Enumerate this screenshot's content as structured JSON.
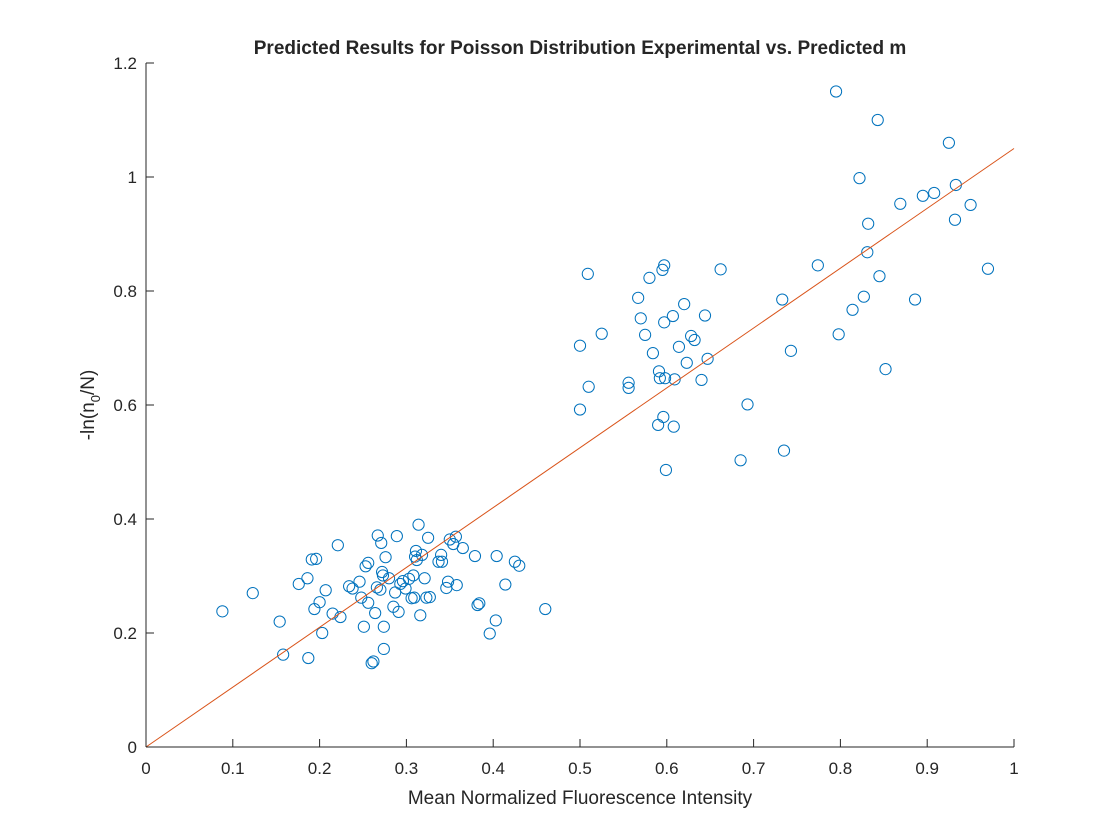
{
  "chart_data": {
    "type": "scatter",
    "title": "Predicted Results for Poisson Distribution Experimental vs. Predicted m",
    "xlabel": "Mean Normalized Fluorescence Intensity",
    "ylabel_main": "-ln(n",
    "ylabel_sub": "0",
    "ylabel_tail": "/N)",
    "xlim": [
      0,
      1
    ],
    "ylim": [
      0,
      1.2
    ],
    "xticks": [
      "0",
      "0.1",
      "0.2",
      "0.3",
      "0.4",
      "0.5",
      "0.6",
      "0.7",
      "0.8",
      "0.9",
      "1"
    ],
    "yticks": [
      "0",
      "0.2",
      "0.4",
      "0.6",
      "0.8",
      "1",
      "1.2"
    ],
    "xtick_values": [
      0,
      0.1,
      0.2,
      0.3,
      0.4,
      0.5,
      0.6,
      0.7,
      0.8,
      0.9,
      1
    ],
    "ytick_values": [
      0,
      0.2,
      0.4,
      0.6,
      0.8,
      1,
      1.2
    ],
    "grid": false,
    "series": [
      {
        "kind": "markers",
        "marker": "circle-open",
        "color": "#0072BD",
        "x": [
          0.088,
          0.123,
          0.154,
          0.158,
          0.176,
          0.186,
          0.187,
          0.191,
          0.194,
          0.196,
          0.2,
          0.203,
          0.207,
          0.215,
          0.221,
          0.224,
          0.234,
          0.238,
          0.246,
          0.248,
          0.251,
          0.253,
          0.256,
          0.256,
          0.26,
          0.262,
          0.264,
          0.266,
          0.267,
          0.27,
          0.271,
          0.272,
          0.273,
          0.274,
          0.274,
          0.276,
          0.28,
          0.285,
          0.287,
          0.289,
          0.291,
          0.293,
          0.296,
          0.299,
          0.303,
          0.306,
          0.308,
          0.309,
          0.31,
          0.311,
          0.312,
          0.314,
          0.316,
          0.318,
          0.321,
          0.323,
          0.325,
          0.327,
          0.337,
          0.34,
          0.341,
          0.346,
          0.348,
          0.35,
          0.354,
          0.357,
          0.358,
          0.365,
          0.379,
          0.382,
          0.384,
          0.396,
          0.403,
          0.404,
          0.414,
          0.425,
          0.43,
          0.46,
          0.5,
          0.5,
          0.509,
          0.51,
          0.525,
          0.556,
          0.556,
          0.567,
          0.57,
          0.575,
          0.58,
          0.584,
          0.59,
          0.591,
          0.592,
          0.595,
          0.596,
          0.597,
          0.597,
          0.598,
          0.599,
          0.607,
          0.608,
          0.609,
          0.614,
          0.62,
          0.623,
          0.628,
          0.632,
          0.64,
          0.644,
          0.647,
          0.662,
          0.685,
          0.693,
          0.733,
          0.735,
          0.743,
          0.774,
          0.795,
          0.798,
          0.814,
          0.822,
          0.827,
          0.831,
          0.832,
          0.843,
          0.845,
          0.852,
          0.869,
          0.886,
          0.895,
          0.908,
          0.925,
          0.932,
          0.933,
          0.95,
          0.97
        ],
        "y": [
          0.238,
          0.27,
          0.22,
          0.162,
          0.286,
          0.296,
          0.156,
          0.329,
          0.242,
          0.33,
          0.254,
          0.2,
          0.275,
          0.234,
          0.354,
          0.228,
          0.282,
          0.278,
          0.29,
          0.262,
          0.211,
          0.317,
          0.253,
          0.323,
          0.147,
          0.15,
          0.235,
          0.28,
          0.371,
          0.276,
          0.358,
          0.307,
          0.301,
          0.172,
          0.211,
          0.333,
          0.296,
          0.246,
          0.271,
          0.37,
          0.237,
          0.286,
          0.291,
          0.278,
          0.295,
          0.261,
          0.301,
          0.262,
          0.334,
          0.344,
          0.328,
          0.39,
          0.231,
          0.337,
          0.296,
          0.262,
          0.367,
          0.263,
          0.325,
          0.337,
          0.325,
          0.279,
          0.29,
          0.364,
          0.356,
          0.369,
          0.284,
          0.349,
          0.335,
          0.249,
          0.252,
          0.199,
          0.222,
          0.335,
          0.285,
          0.325,
          0.318,
          0.242,
          0.704,
          0.592,
          0.83,
          0.632,
          0.725,
          0.63,
          0.639,
          0.788,
          0.752,
          0.723,
          0.823,
          0.691,
          0.565,
          0.659,
          0.647,
          0.837,
          0.579,
          0.845,
          0.745,
          0.647,
          0.486,
          0.756,
          0.562,
          0.645,
          0.702,
          0.777,
          0.674,
          0.721,
          0.714,
          0.644,
          0.757,
          0.681,
          0.838,
          0.503,
          0.601,
          0.785,
          0.52,
          0.695,
          0.845,
          1.15,
          0.724,
          0.767,
          0.998,
          0.79,
          0.868,
          0.918,
          1.1,
          0.826,
          0.663,
          0.953,
          0.785,
          0.967,
          0.972,
          1.06,
          0.925,
          0.986,
          0.951,
          0.839
        ]
      },
      {
        "kind": "line",
        "color": "#D95319",
        "x": [
          0,
          1
        ],
        "y": [
          0,
          1.05
        ]
      }
    ]
  }
}
